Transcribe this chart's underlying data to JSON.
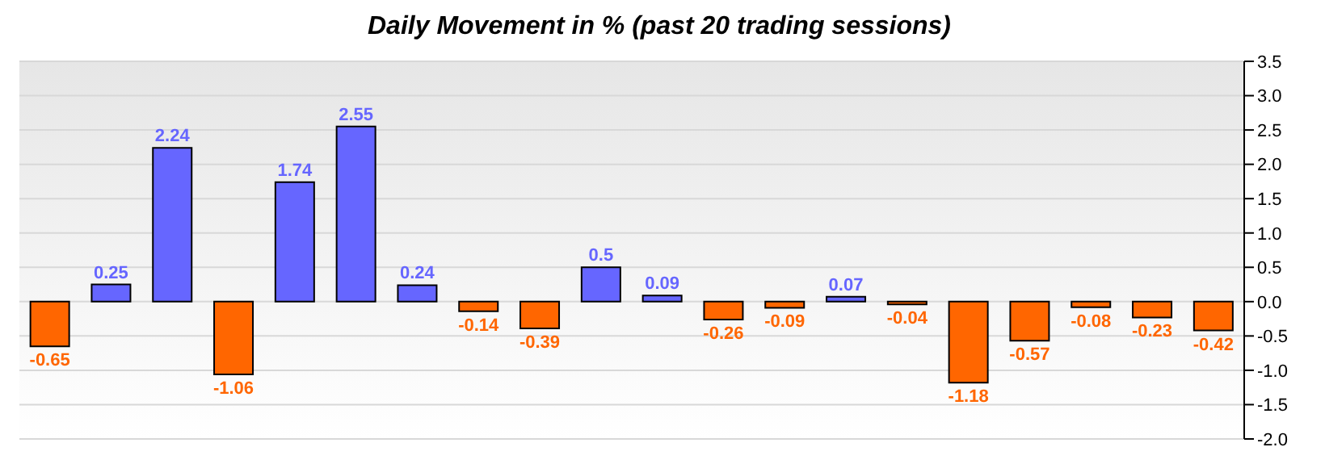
{
  "chart_data": {
    "type": "bar",
    "title": "Daily Movement in % (past 20 trading sessions)",
    "categories": [
      null,
      null,
      null,
      null,
      null,
      null,
      null,
      null,
      null,
      null,
      null,
      null,
      null,
      null,
      null,
      null,
      null,
      null,
      null,
      null
    ],
    "values": [
      -0.65,
      0.25,
      2.24,
      -1.06,
      1.74,
      2.55,
      0.24,
      -0.14,
      -0.39,
      0.5,
      0.09,
      -0.26,
      -0.09,
      0.07,
      -0.04,
      -1.18,
      -0.57,
      -0.08,
      -0.23,
      -0.42
    ],
    "colors": [
      "#ff6600",
      "#6666ff",
      "#6666ff",
      "#ff6600",
      "#6666ff",
      "#6666ff",
      "#6666ff",
      "#ff6600",
      "#ff6600",
      "#6666ff",
      "#6666ff",
      "#ff6600",
      "#ff6600",
      "#6666ff",
      "#ff6600",
      "#ff6600",
      "#ff6600",
      "#ff6600",
      "#ff6600",
      "#ff6600"
    ],
    "ylim": [
      -2,
      3.5
    ],
    "yticks": [
      {
        "value": -2,
        "label": "-2.0"
      },
      {
        "value": -1.5,
        "label": "-1.5"
      },
      {
        "value": -1,
        "label": "-1.0"
      },
      {
        "value": -0.5,
        "label": "-0.5"
      },
      {
        "value": 0,
        "label": "0.0"
      },
      {
        "value": 0.5,
        "label": "0.5"
      },
      {
        "value": 1,
        "label": "1.0"
      },
      {
        "value": 1.5,
        "label": "1.5"
      },
      {
        "value": 2,
        "label": "2.0"
      },
      {
        "value": 2.5,
        "label": "2.5"
      },
      {
        "value": 3,
        "label": "3.0"
      },
      {
        "value": 3.5,
        "label": "3.5"
      }
    ],
    "grid": "y",
    "data_labels": true,
    "tick_labels": "y"
  }
}
